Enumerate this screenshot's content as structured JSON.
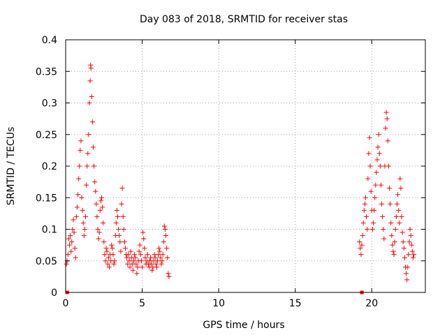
{
  "chart_data": {
    "type": "scatter",
    "title": "Day 083 of 2018, SRMTID for receiver stas",
    "xlabel": "GPS time / hours",
    "ylabel": "SRMTID / TECUs",
    "xlim": [
      0,
      23.5
    ],
    "ylim": [
      0,
      0.4
    ],
    "xticks": [
      0,
      5,
      10,
      15,
      20
    ],
    "yticks": [
      0,
      0.05,
      0.1,
      0.15,
      0.2,
      0.25,
      0.3,
      0.35,
      0.4
    ],
    "xtick_labels": [
      "0",
      "5",
      "10",
      "15",
      "20"
    ],
    "ytick_labels": [
      "0",
      "0.05",
      "0.1",
      "0.15",
      "0.2",
      "0.25",
      "0.3",
      "0.35",
      "0.4"
    ],
    "grid": true,
    "marker": "+",
    "color": "#ff0000",
    "series": [
      {
        "points": [
          [
            0.05,
            0.045
          ],
          [
            0.1,
            0.05
          ],
          [
            0.15,
            0.06
          ],
          [
            0.2,
            0.085
          ],
          [
            0.25,
            0.075
          ],
          [
            0.3,
            0.09
          ],
          [
            0.35,
            0.065
          ],
          [
            0.4,
            0.08
          ],
          [
            0.45,
            0.1
          ],
          [
            0.5,
            0.115
          ],
          [
            0.55,
            0.095
          ],
          [
            0.6,
            0.07
          ],
          [
            0.65,
            0.055
          ],
          [
            0.7,
            0.12
          ],
          [
            0.75,
            0.135
          ],
          [
            0.8,
            0.155
          ],
          [
            0.85,
            0.18
          ],
          [
            0.9,
            0.2
          ],
          [
            0.95,
            0.225
          ],
          [
            1.0,
            0.24
          ],
          [
            1.05,
            0.15
          ],
          [
            1.1,
            0.13
          ],
          [
            1.15,
            0.11
          ],
          [
            1.2,
            0.09
          ],
          [
            1.25,
            0.1
          ],
          [
            1.3,
            0.12
          ],
          [
            1.35,
            0.17
          ],
          [
            1.4,
            0.2
          ],
          [
            1.45,
            0.22
          ],
          [
            1.5,
            0.25
          ],
          [
            1.55,
            0.3
          ],
          [
            1.6,
            0.335
          ],
          [
            1.63,
            0.36
          ],
          [
            1.65,
            0.355
          ],
          [
            1.7,
            0.31
          ],
          [
            1.75,
            0.27
          ],
          [
            1.8,
            0.23
          ],
          [
            1.85,
            0.2
          ],
          [
            1.9,
            0.175
          ],
          [
            1.95,
            0.16
          ],
          [
            2.0,
            0.14
          ],
          [
            2.05,
            0.12
          ],
          [
            2.1,
            0.1
          ],
          [
            2.15,
            0.085
          ],
          [
            2.2,
            0.095
          ],
          [
            2.25,
            0.13
          ],
          [
            2.3,
            0.145
          ],
          [
            2.35,
            0.15
          ],
          [
            2.4,
            0.135
          ],
          [
            2.45,
            0.11
          ],
          [
            2.5,
            0.08
          ],
          [
            2.55,
            0.06
          ],
          [
            2.6,
            0.05
          ],
          [
            2.65,
            0.07
          ],
          [
            2.7,
            0.065
          ],
          [
            2.75,
            0.045
          ],
          [
            2.8,
            0.055
          ],
          [
            2.85,
            0.04
          ],
          [
            2.9,
            0.06
          ],
          [
            2.95,
            0.05
          ],
          [
            3.0,
            0.075
          ],
          [
            3.05,
            0.07
          ],
          [
            3.1,
            0.06
          ],
          [
            3.15,
            0.045
          ],
          [
            3.2,
            0.05
          ],
          [
            3.25,
            0.09
          ],
          [
            3.3,
            0.11
          ],
          [
            3.35,
            0.13
          ],
          [
            3.4,
            0.12
          ],
          [
            3.45,
            0.1
          ],
          [
            3.5,
            0.09
          ],
          [
            3.55,
            0.08
          ],
          [
            3.6,
            0.065
          ],
          [
            3.65,
            0.14
          ],
          [
            3.7,
            0.165
          ],
          [
            3.75,
            0.12
          ],
          [
            3.8,
            0.1
          ],
          [
            3.85,
            0.08
          ],
          [
            3.9,
            0.07
          ],
          [
            3.95,
            0.06
          ],
          [
            4.0,
            0.055
          ],
          [
            4.05,
            0.045
          ],
          [
            4.1,
            0.06
          ],
          [
            4.15,
            0.05
          ],
          [
            4.2,
            0.04
          ],
          [
            4.25,
            0.065
          ],
          [
            4.3,
            0.055
          ],
          [
            4.35,
            0.045
          ],
          [
            4.4,
            0.035
          ],
          [
            4.45,
            0.05
          ],
          [
            4.5,
            0.06
          ],
          [
            4.55,
            0.055
          ],
          [
            4.6,
            0.045
          ],
          [
            4.65,
            0.03
          ],
          [
            4.7,
            0.04
          ],
          [
            4.75,
            0.05
          ],
          [
            4.8,
            0.065
          ],
          [
            4.85,
            0.075
          ],
          [
            4.9,
            0.06
          ],
          [
            4.95,
            0.05
          ],
          [
            5.0,
            0.04
          ],
          [
            5.05,
            0.095
          ],
          [
            5.1,
            0.085
          ],
          [
            5.15,
            0.07
          ],
          [
            5.2,
            0.055
          ],
          [
            5.25,
            0.045
          ],
          [
            5.3,
            0.05
          ],
          [
            5.35,
            0.06
          ],
          [
            5.4,
            0.045
          ],
          [
            5.45,
            0.04
          ],
          [
            5.5,
            0.05
          ],
          [
            5.55,
            0.055
          ],
          [
            5.6,
            0.045
          ],
          [
            5.65,
            0.035
          ],
          [
            5.7,
            0.04
          ],
          [
            5.75,
            0.05
          ],
          [
            5.8,
            0.06
          ],
          [
            5.85,
            0.055
          ],
          [
            5.9,
            0.045
          ],
          [
            5.95,
            0.04
          ],
          [
            6.0,
            0.05
          ],
          [
            6.05,
            0.06
          ],
          [
            6.1,
            0.07
          ],
          [
            6.15,
            0.065
          ],
          [
            6.2,
            0.055
          ],
          [
            6.25,
            0.045
          ],
          [
            6.3,
            0.05
          ],
          [
            6.35,
            0.06
          ],
          [
            6.4,
            0.08
          ],
          [
            6.45,
            0.105
          ],
          [
            6.5,
            0.1
          ],
          [
            6.55,
            0.09
          ],
          [
            6.6,
            0.07
          ],
          [
            6.65,
            0.055
          ],
          [
            6.7,
            0.03
          ],
          [
            6.75,
            0.025
          ],
          [
            19.2,
            0.08
          ],
          [
            19.25,
            0.07
          ],
          [
            19.3,
            0.06
          ],
          [
            19.35,
            0.075
          ],
          [
            19.4,
            0.09
          ],
          [
            19.45,
            0.11
          ],
          [
            19.5,
            0.13
          ],
          [
            19.55,
            0.14
          ],
          [
            19.6,
            0.15
          ],
          [
            19.65,
            0.12
          ],
          [
            19.7,
            0.1
          ],
          [
            19.75,
            0.18
          ],
          [
            19.8,
            0.22
          ],
          [
            19.85,
            0.245
          ],
          [
            19.9,
            0.2
          ],
          [
            19.95,
            0.16
          ],
          [
            20.0,
            0.13
          ],
          [
            20.05,
            0.1
          ],
          [
            20.1,
            0.11
          ],
          [
            20.15,
            0.13
          ],
          [
            20.2,
            0.15
          ],
          [
            20.25,
            0.17
          ],
          [
            20.3,
            0.19
          ],
          [
            20.35,
            0.21
          ],
          [
            20.4,
            0.23
          ],
          [
            20.45,
            0.25
          ],
          [
            20.5,
            0.22
          ],
          [
            20.55,
            0.2
          ],
          [
            20.6,
            0.17
          ],
          [
            20.65,
            0.14
          ],
          [
            20.7,
            0.12
          ],
          [
            20.75,
            0.1
          ],
          [
            20.8,
            0.085
          ],
          [
            20.85,
            0.2
          ],
          [
            20.9,
            0.26
          ],
          [
            20.95,
            0.285
          ],
          [
            21.0,
            0.275
          ],
          [
            21.05,
            0.24
          ],
          [
            21.1,
            0.2
          ],
          [
            21.15,
            0.165
          ],
          [
            21.2,
            0.14
          ],
          [
            21.25,
            0.11
          ],
          [
            21.3,
            0.09
          ],
          [
            21.35,
            0.075
          ],
          [
            21.4,
            0.065
          ],
          [
            21.45,
            0.06
          ],
          [
            21.5,
            0.08
          ],
          [
            21.55,
            0.1
          ],
          [
            21.6,
            0.12
          ],
          [
            21.65,
            0.14
          ],
          [
            21.7,
            0.155
          ],
          [
            21.75,
            0.13
          ],
          [
            21.8,
            0.11
          ],
          [
            21.85,
            0.18
          ],
          [
            21.9,
            0.165
          ],
          [
            21.95,
            0.12
          ],
          [
            22.0,
            0.095
          ],
          [
            22.05,
            0.08
          ],
          [
            22.1,
            0.07
          ],
          [
            22.15,
            0.055
          ],
          [
            22.2,
            0.04
          ],
          [
            22.25,
            0.03
          ],
          [
            22.3,
            0.02
          ],
          [
            22.35,
            0.04
          ],
          [
            22.4,
            0.06
          ],
          [
            22.45,
            0.08
          ],
          [
            22.5,
            0.1
          ],
          [
            22.55,
            0.09
          ],
          [
            22.6,
            0.075
          ],
          [
            22.65,
            0.065
          ],
          [
            22.7,
            0.055
          ],
          [
            22.75,
            0.06
          ]
        ]
      }
    ],
    "edge_markers": [
      [
        0.1,
        0
      ],
      [
        19.35,
        0
      ]
    ]
  }
}
